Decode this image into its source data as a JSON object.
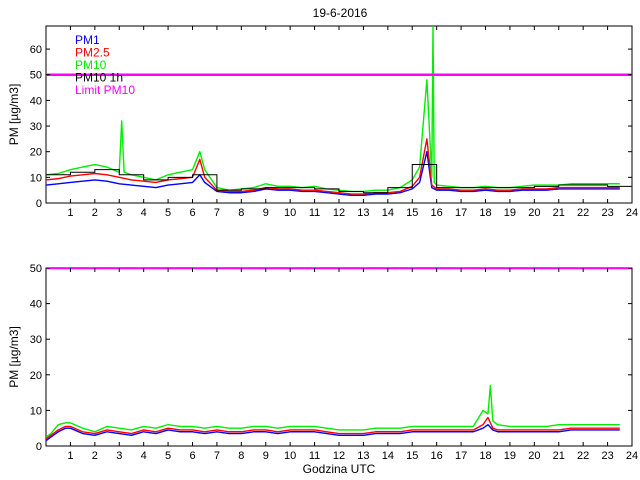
{
  "chart_data": [
    {
      "type": "line",
      "title": "19-6-2016",
      "xlabel": "",
      "ylabel": "PM [µg/m3]",
      "xlim": [
        0,
        24
      ],
      "ylim": [
        0,
        69
      ],
      "xticks": [
        1,
        2,
        3,
        4,
        5,
        6,
        7,
        8,
        9,
        10,
        11,
        12,
        13,
        14,
        15,
        16,
        17,
        18,
        19,
        20,
        21,
        22,
        23,
        24
      ],
      "yticks": [
        0,
        10,
        20,
        30,
        40,
        50,
        60
      ],
      "grid": false,
      "legend": "top-left",
      "limit_value": 50,
      "series": [
        {
          "name": "PM1",
          "color": "#0000ff",
          "style": "line",
          "x": [
            0,
            0.5,
            1,
            1.5,
            2,
            2.5,
            3,
            3.5,
            4,
            4.5,
            5,
            5.5,
            6,
            6.3,
            6.5,
            7,
            7.5,
            8,
            8.5,
            9,
            9.5,
            10,
            10.5,
            11,
            11.5,
            12,
            12.5,
            13,
            13.5,
            14,
            14.5,
            15,
            15.3,
            15.6,
            15.8,
            16,
            16.5,
            17,
            17.5,
            18,
            18.5,
            19,
            19.5,
            20,
            20.5,
            21,
            21.5,
            22,
            22.5,
            23,
            23.5
          ],
          "y": [
            7,
            7.5,
            8,
            8.5,
            9,
            8.5,
            7.5,
            7,
            6.5,
            6,
            7,
            7.5,
            8,
            11,
            8,
            4.5,
            4,
            4,
            4.5,
            5.5,
            5,
            5,
            4.5,
            4.5,
            4,
            3.5,
            3,
            3,
            3.5,
            3.5,
            4,
            5.5,
            8,
            20,
            6,
            5,
            5,
            4.5,
            4.5,
            5,
            4.5,
            4.5,
            5,
            5,
            5,
            5.5,
            5.5,
            5.5,
            5.5,
            5.5,
            5.5
          ]
        },
        {
          "name": "PM2.5",
          "color": "#ff0000",
          "style": "line",
          "x": [
            0,
            0.5,
            1,
            1.5,
            2,
            2.5,
            3,
            3.5,
            4,
            4.5,
            5,
            5.5,
            6,
            6.3,
            6.5,
            7,
            7.5,
            8,
            8.5,
            9,
            9.5,
            10,
            10.5,
            11,
            11.5,
            12,
            12.5,
            13,
            13.5,
            14,
            14.5,
            15,
            15.3,
            15.6,
            15.8,
            16,
            16.5,
            17,
            17.5,
            18,
            18.5,
            19,
            19.5,
            20,
            20.5,
            21,
            21.5,
            22,
            22.5,
            23,
            23.5
          ],
          "y": [
            9,
            9.5,
            10.5,
            11,
            11.5,
            11,
            10,
            9,
            8.5,
            8,
            9,
            9.5,
            10,
            17,
            10,
            5,
            4.5,
            4.5,
            5,
            6,
            5.5,
            5.5,
            5,
            5,
            4.5,
            4,
            3.5,
            3.5,
            4,
            4,
            4.5,
            6.5,
            10,
            25,
            7,
            5.5,
            5.5,
            5,
            5,
            5.5,
            5,
            5,
            5.5,
            5.5,
            5.5,
            6,
            6,
            6,
            6,
            6,
            6
          ]
        },
        {
          "name": "PM10",
          "color": "#00ee00",
          "style": "line",
          "x": [
            0,
            0.5,
            1,
            1.5,
            2,
            2.5,
            3,
            3.1,
            3.2,
            3.5,
            4,
            4.5,
            5,
            5.5,
            6,
            6.3,
            6.5,
            7,
            7.5,
            8,
            8.5,
            9,
            9.5,
            10,
            10.5,
            11,
            11.5,
            12,
            12.5,
            13,
            13.5,
            14,
            14.5,
            15,
            15.3,
            15.6,
            15.8,
            15.85,
            15.9,
            16,
            16.5,
            17,
            17.5,
            18,
            18.5,
            19,
            19.5,
            20,
            20.5,
            21,
            21.5,
            22,
            22.5,
            23,
            23.5
          ],
          "y": [
            11,
            11.5,
            13,
            14,
            15,
            14,
            12,
            32,
            12,
            11,
            10,
            9,
            11,
            12,
            13,
            20,
            13,
            6,
            5,
            5.5,
            6,
            7.5,
            6.5,
            6.5,
            6,
            6.5,
            5.5,
            5,
            4.5,
            4.5,
            5,
            5,
            6,
            9,
            14,
            48,
            10,
            69,
            8,
            7,
            6.5,
            6,
            6,
            6.5,
            6,
            6,
            6.5,
            7,
            7,
            7,
            7.5,
            7.5,
            7.5,
            7.5,
            7.5
          ]
        },
        {
          "name": "PM10 1h",
          "color": "#000000",
          "style": "step",
          "x": [
            0,
            1,
            2,
            3,
            4,
            5,
            6,
            7,
            8,
            9,
            10,
            11,
            12,
            13,
            14,
            15,
            16,
            17,
            18,
            19,
            20,
            21,
            22,
            23,
            24
          ],
          "y": [
            11,
            12,
            13,
            11,
            9,
            10,
            11,
            5,
            5.5,
            6,
            6,
            5.5,
            4.5,
            4,
            6,
            15,
            6,
            6,
            6,
            6,
            6.5,
            7,
            7,
            6.5,
            6.5
          ]
        },
        {
          "name": "Limit PM10",
          "color": "#ff00ff",
          "style": "hline",
          "value": 50
        }
      ]
    },
    {
      "type": "line",
      "title": "",
      "xlabel": "Godzina UTC",
      "ylabel": "PM [µg/m3]",
      "xlim": [
        0,
        24
      ],
      "ylim": [
        0,
        50
      ],
      "xticks": [
        1,
        2,
        3,
        4,
        5,
        6,
        7,
        8,
        9,
        10,
        11,
        12,
        13,
        14,
        15,
        16,
        17,
        18,
        19,
        20,
        21,
        22,
        23,
        24
      ],
      "yticks": [
        0,
        10,
        20,
        30,
        40,
        50
      ],
      "grid": false,
      "legend": "none",
      "limit_value": 50,
      "series": [
        {
          "name": "PM1",
          "color": "#0000ff",
          "style": "line",
          "x": [
            0,
            0.2,
            0.5,
            0.8,
            1,
            1.5,
            2,
            2.5,
            3,
            3.5,
            4,
            4.5,
            5,
            5.5,
            6,
            6.5,
            7,
            7.5,
            8,
            8.5,
            9,
            9.5,
            10,
            10.5,
            11,
            11.5,
            12,
            12.5,
            13,
            13.5,
            14,
            14.5,
            15,
            15.5,
            16,
            16.5,
            17,
            17.5,
            17.9,
            18.1,
            18.3,
            18.5,
            19,
            19.5,
            20,
            20.5,
            21,
            21.5,
            22,
            22.5,
            23,
            23.5
          ],
          "y": [
            1.5,
            2.5,
            4,
            5,
            5,
            3.5,
            3,
            4,
            3.5,
            3,
            4,
            3.5,
            4.5,
            4,
            4,
            3.5,
            4,
            3.5,
            3.5,
            4,
            4,
            3.5,
            4,
            4,
            4,
            3.5,
            3,
            3,
            3,
            3.5,
            3.5,
            3.5,
            4,
            4,
            4,
            4,
            4,
            4,
            5,
            6,
            4.5,
            4,
            4,
            4,
            4,
            4,
            4,
            4.5,
            4.5,
            4.5,
            4.5,
            4.5
          ]
        },
        {
          "name": "PM2.5",
          "color": "#ff0000",
          "style": "line",
          "x": [
            0,
            0.2,
            0.5,
            0.8,
            1,
            1.5,
            2,
            2.5,
            3,
            3.5,
            4,
            4.5,
            5,
            5.5,
            6,
            6.5,
            7,
            7.5,
            8,
            8.5,
            9,
            9.5,
            10,
            10.5,
            11,
            11.5,
            12,
            12.5,
            13,
            13.5,
            14,
            14.5,
            15,
            15.5,
            16,
            16.5,
            17,
            17.5,
            17.9,
            18.1,
            18.3,
            18.5,
            19,
            19.5,
            20,
            20.5,
            21,
            21.5,
            22,
            22.5,
            23,
            23.5
          ],
          "y": [
            2,
            3,
            4.5,
            5.5,
            5.5,
            4,
            3.5,
            4.5,
            4,
            3.5,
            4.5,
            4,
            5,
            4.5,
            4.5,
            4,
            4.5,
            4,
            4,
            4.5,
            4.5,
            4,
            4.5,
            4.5,
            4.5,
            4,
            3.5,
            3.5,
            3.5,
            4,
            4,
            4,
            4.5,
            4.5,
            4.5,
            4.5,
            4.5,
            4.5,
            6,
            8,
            5,
            4.5,
            4.5,
            4.5,
            4.5,
            4.5,
            4.5,
            5,
            5,
            5,
            5,
            5
          ]
        },
        {
          "name": "PM10",
          "color": "#00ee00",
          "style": "line",
          "x": [
            0,
            0.2,
            0.5,
            0.8,
            1,
            1.5,
            2,
            2.5,
            3,
            3.5,
            4,
            4.5,
            5,
            5.5,
            6,
            6.5,
            7,
            7.5,
            8,
            8.5,
            9,
            9.5,
            10,
            10.5,
            11,
            11.5,
            12,
            12.5,
            13,
            13.5,
            14,
            14.5,
            15,
            15.5,
            16,
            16.5,
            17,
            17.5,
            17.9,
            18.1,
            18.2,
            18.3,
            18.5,
            19,
            19.5,
            20,
            20.5,
            21,
            21.5,
            22,
            22.5,
            23,
            23.5
          ],
          "y": [
            2.5,
            3.5,
            6,
            6.5,
            6.5,
            5,
            4,
            5.5,
            5,
            4.5,
            5.5,
            5,
            6,
            5.5,
            5.5,
            5,
            5.5,
            5,
            5,
            5.5,
            5.5,
            5,
            5.5,
            5.5,
            5.5,
            5,
            4.5,
            4.5,
            4.5,
            5,
            5,
            5,
            5.5,
            5.5,
            5.5,
            5.5,
            5.5,
            5.5,
            10,
            9,
            17,
            7,
            6,
            5.5,
            5.5,
            5.5,
            5.5,
            6,
            6,
            6,
            6,
            6,
            6
          ]
        },
        {
          "name": "Limit PM10",
          "color": "#ff00ff",
          "style": "hline",
          "value": 50
        }
      ]
    }
  ]
}
